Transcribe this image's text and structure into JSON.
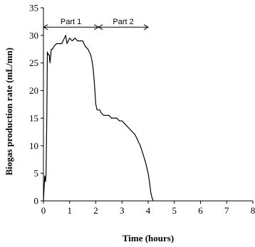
{
  "chart_data": {
    "type": "line",
    "title": "",
    "xlabel": "Time (hours)",
    "ylabel": "Biogas production rate (mL/mn)",
    "xlim": [
      0,
      8
    ],
    "ylim": [
      0,
      35
    ],
    "x_ticks": [
      0,
      1,
      2,
      3,
      4,
      5,
      6,
      7,
      8
    ],
    "y_ticks": [
      0,
      5,
      10,
      15,
      20,
      25,
      30,
      35
    ],
    "grid": false,
    "legend": "none",
    "annotations": [
      {
        "text": "Part 1",
        "x_from": 0,
        "x_to": 2.1,
        "y": 31.5
      },
      {
        "text": "Part 2",
        "x_from": 2.1,
        "x_to": 4.0,
        "y": 31.5
      }
    ],
    "series": [
      {
        "x": [
          0,
          0.05,
          0.08,
          0.1,
          0.13,
          0.15,
          0.18,
          0.22,
          0.25,
          0.3,
          0.35,
          0.4,
          0.5,
          0.6,
          0.7,
          0.8,
          0.85,
          0.9,
          0.95,
          1.0,
          1.1,
          1.2,
          1.3,
          1.4,
          1.5,
          1.6,
          1.7,
          1.8,
          1.85,
          1.9,
          1.95,
          2.0,
          2.05,
          2.1,
          2.15,
          2.2,
          2.3,
          2.4,
          2.5,
          2.6,
          2.7,
          2.8,
          2.9,
          3.0,
          3.1,
          3.2,
          3.3,
          3.4,
          3.5,
          3.6,
          3.7,
          3.8,
          3.9,
          4.0,
          4.05,
          4.1,
          4.15,
          4.2
        ],
        "y": [
          0,
          4.5,
          3.5,
          5,
          16,
          27,
          26.5,
          26.5,
          25,
          27.5,
          27.5,
          28,
          28.5,
          28.5,
          28.5,
          29.5,
          30,
          28.5,
          29,
          29.5,
          29,
          29.5,
          29,
          29,
          29,
          28,
          27.5,
          26.5,
          25.5,
          24,
          21,
          17.5,
          16.5,
          16.5,
          16.5,
          16,
          15.5,
          15.5,
          15.5,
          15,
          15,
          15,
          14.5,
          14.5,
          14,
          13.5,
          13,
          12.5,
          12,
          11,
          10,
          8.5,
          7,
          5,
          3.5,
          1.5,
          0.5,
          0
        ]
      }
    ]
  }
}
